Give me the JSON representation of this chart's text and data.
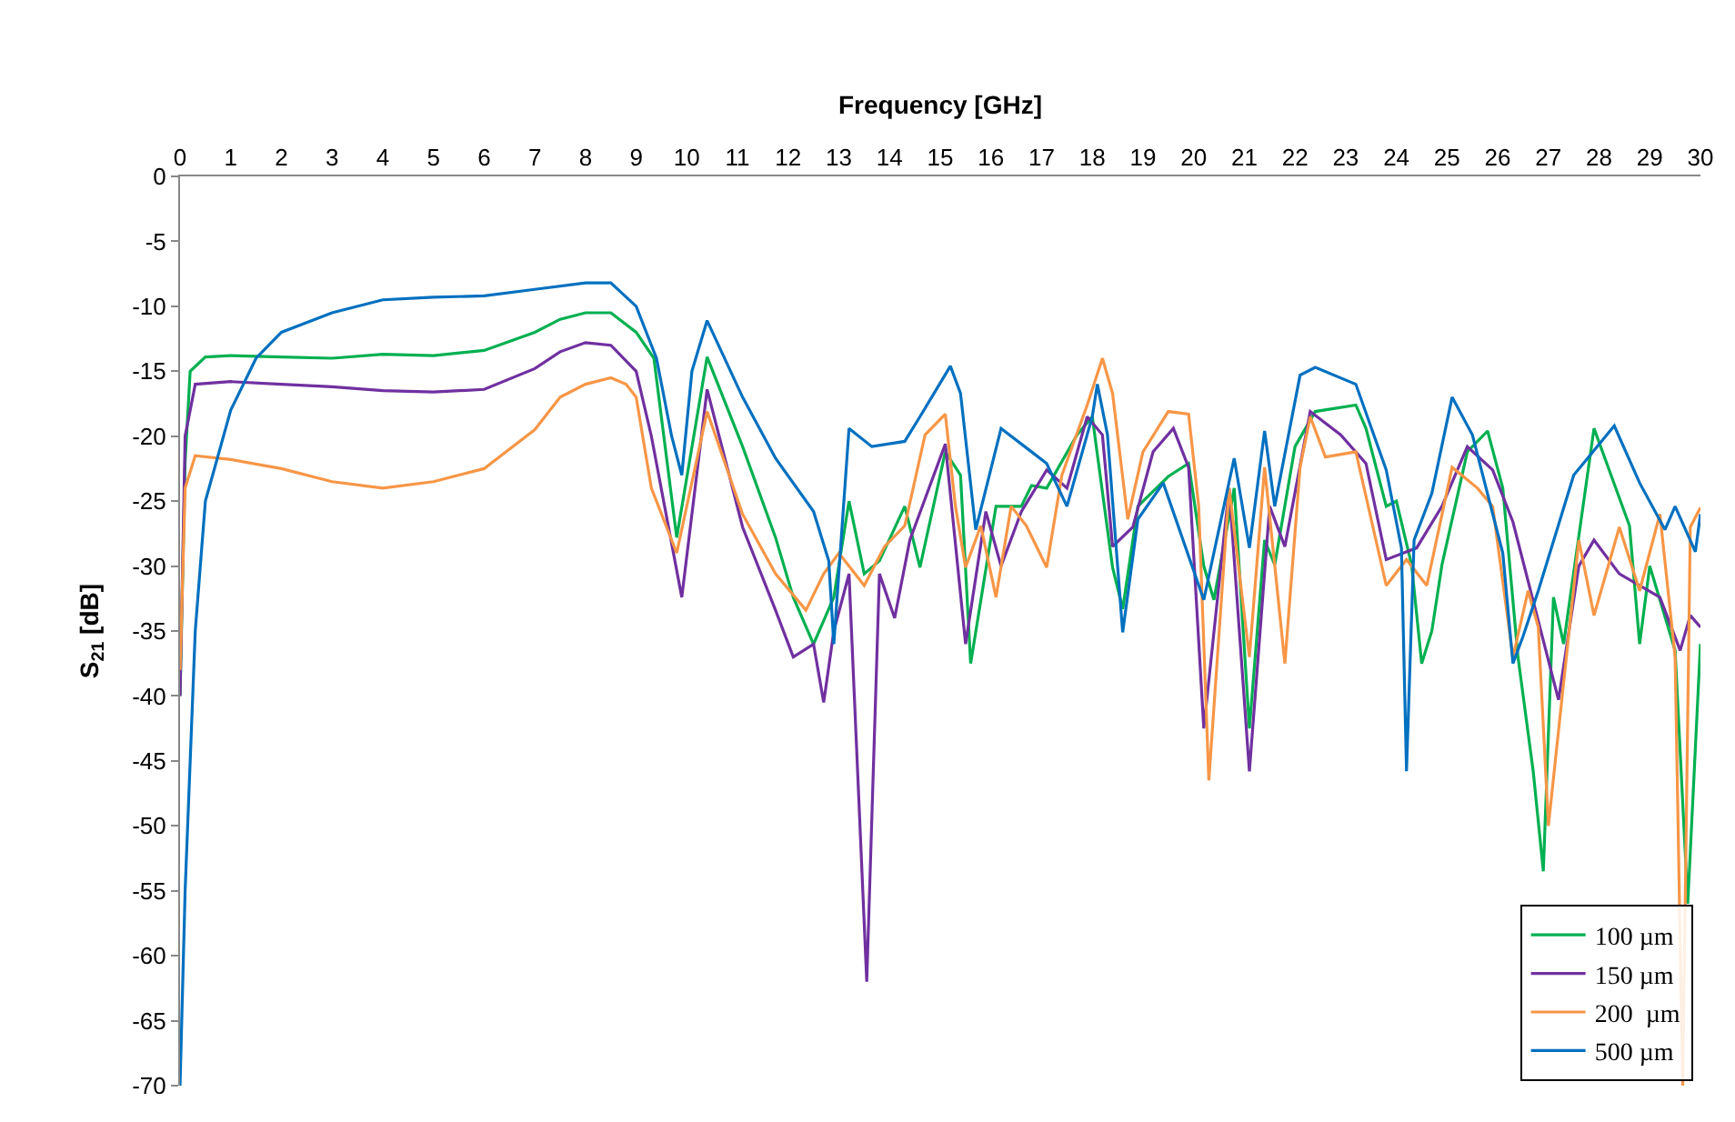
{
  "chart_data": {
    "type": "line",
    "xlabel": "Frequency [GHz]",
    "ylabel": "S$_{21}$ [dB]",
    "xlim": [
      0,
      30
    ],
    "xticks": [
      0,
      1,
      2,
      3,
      4,
      5,
      6,
      7,
      8,
      9,
      10,
      11,
      12,
      13,
      14,
      15,
      16,
      17,
      18,
      19,
      20,
      21,
      22,
      23,
      24,
      25,
      26,
      27,
      28,
      29,
      30
    ],
    "ylim": [
      -70,
      0
    ],
    "yticks": [
      -70,
      -65,
      -60,
      -55,
      -50,
      -45,
      -40,
      -35,
      -30,
      -25,
      -20,
      -15,
      -10,
      -5,
      0
    ],
    "grid": false,
    "legend": "bottom right",
    "marker": "none",
    "line_style": "solid",
    "series": [
      {
        "name": "100 µm",
        "color": "#00b050",
        "x": [
          0,
          0.1,
          0.2,
          0.5,
          1,
          2,
          3,
          4,
          5,
          6,
          7,
          7.5,
          8,
          8.5,
          9,
          9.35,
          9.8,
          10.4,
          11.1,
          11.75,
          12.1,
          12.5,
          12.9,
          13.2,
          13.5,
          13.8,
          14.3,
          14.6,
          15.1,
          15.4,
          15.6,
          16.1,
          16.6,
          16.8,
          17.1,
          17.7,
          18,
          18.4,
          18.6,
          18.9,
          19.5,
          19.9,
          20.2,
          20.4,
          20.8,
          21.1,
          21.4,
          21.6,
          22,
          22.4,
          23.2,
          23.4,
          23.8,
          24,
          24.3,
          24.5,
          24.7,
          24.9,
          25.4,
          25.8,
          26.1,
          26.4,
          26.7,
          26.9,
          27.1,
          27.3,
          27.9,
          28.6,
          28.8,
          29,
          29.5,
          29.75,
          30
        ],
        "values": [
          -40,
          -22,
          -15,
          -13.9,
          -13.8,
          -13.9,
          -14,
          -13.7,
          -13.8,
          -13.4,
          -12,
          -11,
          -10.5,
          -10.5,
          -12,
          -14,
          -27.8,
          -13.9,
          -20.8,
          -27.8,
          -32.4,
          -36,
          -32.4,
          -25,
          -30.6,
          -29.6,
          -25.4,
          -30.1,
          -21.2,
          -23,
          -37.5,
          -25.4,
          -25.4,
          -23.8,
          -24,
          -19.9,
          -18.5,
          -30.1,
          -33.3,
          -25.4,
          -23.1,
          -22.1,
          -30,
          -32.6,
          -24,
          -42.5,
          -28,
          -29.9,
          -20.8,
          -18.1,
          -17.6,
          -19.4,
          -25.4,
          -25,
          -29.9,
          -37.5,
          -35,
          -29.9,
          -21.2,
          -19.6,
          -24,
          -37,
          -45.8,
          -53.5,
          -32.4,
          -36,
          -19.4,
          -26.9,
          -36,
          -30,
          -36.5,
          -56,
          -36
        ]
      },
      {
        "name": "150 µm",
        "color": "#7030a0",
        "x": [
          0,
          0.1,
          0.3,
          1,
          2,
          3,
          4,
          5,
          6,
          7,
          7.5,
          8,
          8.5,
          9,
          9.3,
          9.9,
          10.4,
          11.1,
          11.75,
          12.1,
          12.5,
          12.7,
          12.9,
          13.2,
          13.55,
          13.8,
          14.1,
          14.4,
          15.1,
          15.5,
          15.9,
          16.2,
          16.6,
          17.1,
          17.5,
          17.9,
          18.2,
          18.4,
          18.8,
          19.2,
          19.6,
          19.9,
          20.2,
          20.7,
          21.1,
          21.5,
          21.8,
          22.3,
          22.9,
          23.4,
          23.8,
          24.4,
          24.9,
          25.4,
          25.9,
          26.3,
          27.2,
          27.6,
          27.9,
          28.4,
          29.2,
          29.6,
          29.8,
          30
        ],
        "values": [
          -40,
          -20,
          -16,
          -15.8,
          -16,
          -16.2,
          -16.5,
          -16.6,
          -16.4,
          -14.8,
          -13.5,
          -12.8,
          -13,
          -15,
          -20,
          -32.4,
          -16.4,
          -27,
          -33.4,
          -37,
          -36,
          -40.5,
          -35,
          -30.6,
          -62,
          -30.6,
          -34,
          -28,
          -20.6,
          -36,
          -25.8,
          -30,
          -25.8,
          -22.6,
          -24,
          -18.5,
          -19.9,
          -28.5,
          -27,
          -21.2,
          -19.4,
          -22.4,
          -42.5,
          -24,
          -45.8,
          -25.4,
          -28.5,
          -18.1,
          -19.9,
          -22.1,
          -29.5,
          -28.6,
          -25.4,
          -20.8,
          -22.6,
          -26.6,
          -40.3,
          -30,
          -28,
          -30.6,
          -32.4,
          -36.5,
          -33.8,
          -34.7
        ]
      },
      {
        "name": "200  µm",
        "color": "#f79646",
        "x": [
          0,
          0.1,
          0.3,
          1,
          2,
          3,
          4,
          5,
          6,
          7,
          7.5,
          8,
          8.5,
          8.8,
          9,
          9.3,
          9.8,
          10.4,
          11.1,
          11.75,
          12.35,
          12.7,
          13,
          13.5,
          13.9,
          14.3,
          14.7,
          15.1,
          15.3,
          15.5,
          15.8,
          16.1,
          16.4,
          16.7,
          17.1,
          17.4,
          17.9,
          18.2,
          18.4,
          18.7,
          19,
          19.5,
          19.9,
          20.1,
          20.3,
          20.7,
          21.1,
          21.4,
          21.8,
          22.1,
          22.3,
          22.6,
          23.2,
          23.8,
          24.2,
          24.6,
          25.1,
          25.6,
          25.9,
          26.3,
          26.6,
          26.8,
          27,
          27.6,
          27.9,
          28.4,
          28.8,
          29.2,
          29.5,
          29.65,
          29.8,
          30
        ],
        "values": [
          -38,
          -24,
          -21.5,
          -21.8,
          -22.5,
          -23.5,
          -24,
          -23.5,
          -22.5,
          -19.5,
          -17,
          -16,
          -15.5,
          -16,
          -17,
          -24,
          -29,
          -18.1,
          -26,
          -30.6,
          -33.4,
          -30.6,
          -29,
          -31.5,
          -28.5,
          -26.9,
          -19.9,
          -18.3,
          -25.4,
          -30.1,
          -26.9,
          -32.4,
          -25.4,
          -26.9,
          -30.1,
          -23,
          -17.6,
          -14,
          -16.7,
          -26.4,
          -21.2,
          -18.1,
          -18.3,
          -25.4,
          -46.5,
          -24,
          -37,
          -22.4,
          -37.5,
          -22.4,
          -18.5,
          -21.6,
          -21.2,
          -31.5,
          -29.5,
          -31.5,
          -22.4,
          -24,
          -25.4,
          -37,
          -31.9,
          -34.7,
          -50,
          -28,
          -33.8,
          -27,
          -31.9,
          -26,
          -37,
          -70,
          -27,
          -25.5
        ]
      },
      {
        "name": "500 µm",
        "color": "#0070c0",
        "x": [
          0,
          0.1,
          0.3,
          0.5,
          1,
          1.5,
          2,
          3,
          4,
          5,
          6,
          7,
          8,
          8.5,
          9,
          9.4,
          9.7,
          9.9,
          10.1,
          10.4,
          11.1,
          11.75,
          12.5,
          12.8,
          12.9,
          13.2,
          13.65,
          14.3,
          14.6,
          15.2,
          15.4,
          15.7,
          16.2,
          16.8,
          17.1,
          17.5,
          18,
          18.1,
          18.3,
          18.6,
          18.9,
          19.4,
          20.2,
          20.8,
          21.1,
          21.4,
          21.6,
          22.1,
          22.4,
          23.2,
          23.8,
          24.1,
          24.2,
          24.35,
          24.7,
          25.1,
          25.5,
          26.1,
          26.3,
          26.5,
          26.8,
          27.5,
          28.3,
          28.8,
          29.3,
          29.5,
          29.9,
          30
        ],
        "values": [
          -70,
          -55,
          -35,
          -25,
          -18,
          -14,
          -12,
          -10.5,
          -9.5,
          -9.3,
          -9.2,
          -8.7,
          -8.2,
          -8.2,
          -10,
          -14,
          -20,
          -23,
          -15,
          -11.1,
          -17,
          -21.7,
          -25.8,
          -29.6,
          -36,
          -19.4,
          -20.8,
          -20.4,
          -18.5,
          -14.6,
          -16.7,
          -27.2,
          -19.4,
          -21.2,
          -22.1,
          -25.4,
          -18.5,
          -16,
          -19.9,
          -35.1,
          -26.4,
          -23.6,
          -32.6,
          -21.7,
          -28.6,
          -19.6,
          -25.4,
          -15.3,
          -14.7,
          -16,
          -22.6,
          -28.6,
          -45.8,
          -28,
          -24.4,
          -17,
          -19.9,
          -29,
          -37.5,
          -35.4,
          -31.9,
          -23,
          -19.2,
          -23.6,
          -27.2,
          -25.4,
          -28.9,
          -26
        ]
      }
    ]
  }
}
